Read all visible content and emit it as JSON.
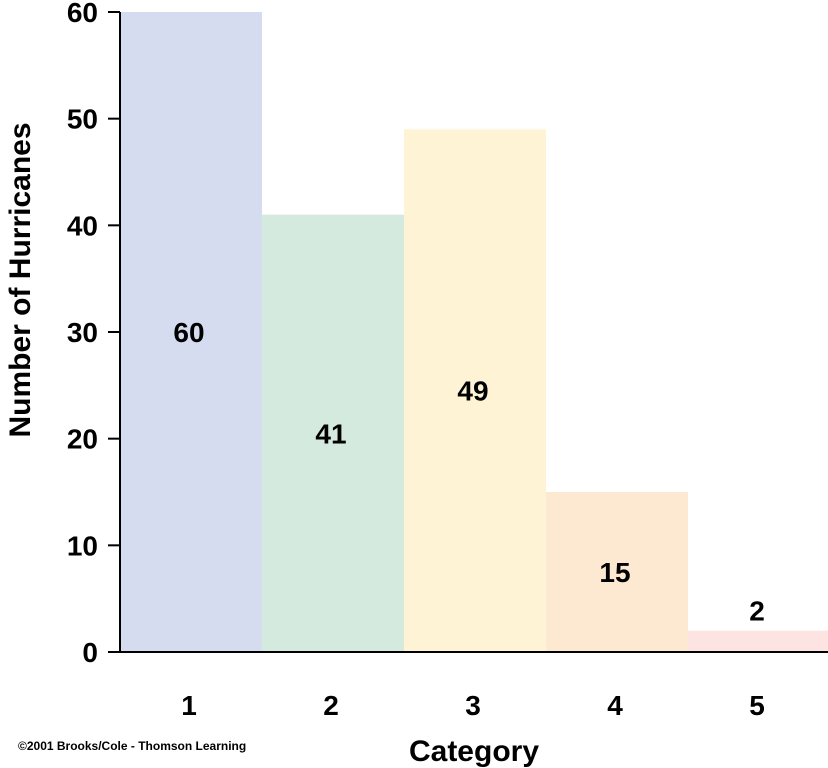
{
  "chart_data": {
    "type": "bar",
    "categories": [
      "1",
      "2",
      "3",
      "4",
      "5"
    ],
    "values": [
      60,
      41,
      49,
      15,
      2
    ],
    "data_labels": [
      "60",
      "41",
      "49",
      "15",
      "2"
    ],
    "title": "",
    "xlabel": "Category",
    "ylabel": "Number of Hurricanes",
    "ylim": [
      0,
      60
    ],
    "yticks": [
      0,
      10,
      20,
      30,
      40,
      50,
      60
    ],
    "grid": false,
    "bar_colors": [
      "#d6dcef",
      "#d5eadf",
      "#fff3d6",
      "#fde9d2",
      "#fde4e2"
    ]
  },
  "credit": "©2001 Brooks/Cole - Thomson Learning"
}
